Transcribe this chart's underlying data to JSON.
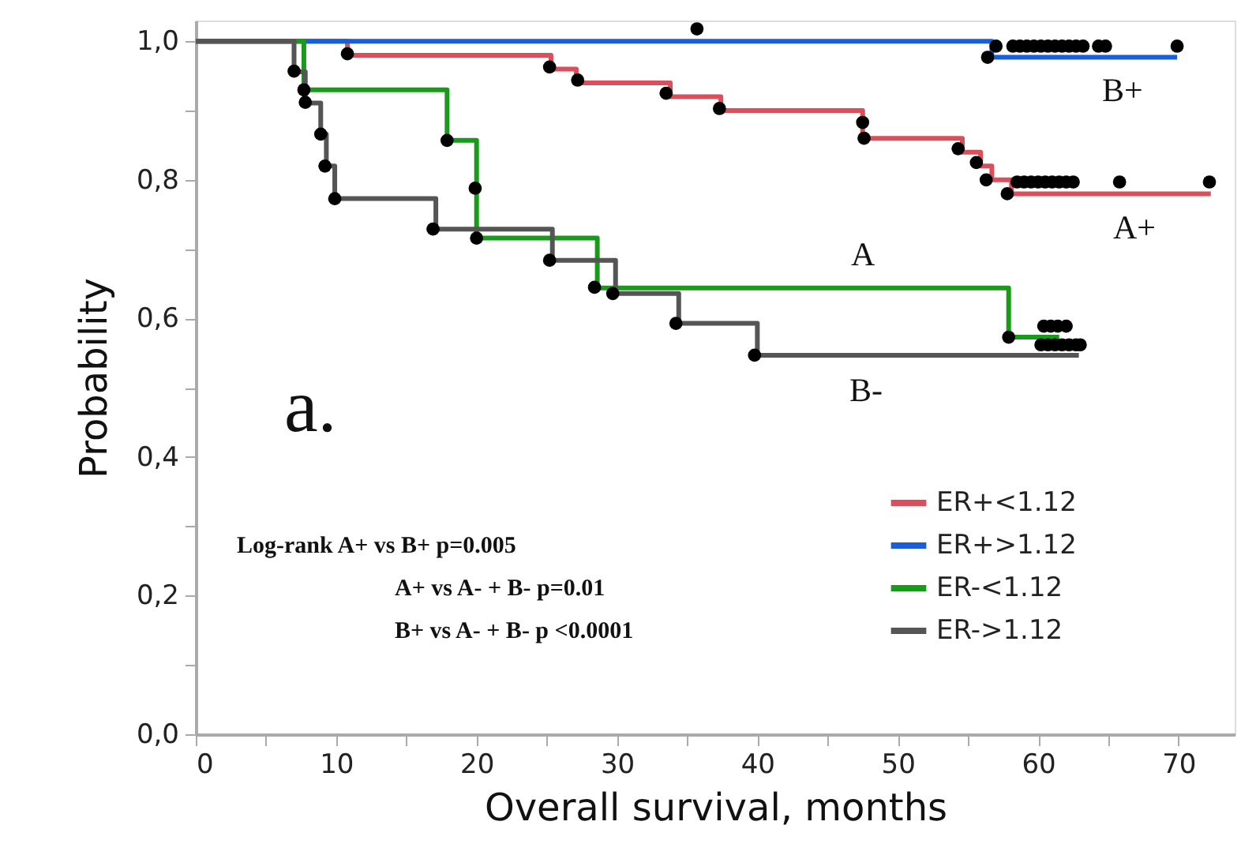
{
  "chart_data": {
    "type": "step",
    "xlabel": "Overall survival, months",
    "ylabel": "Probability",
    "xlim": [
      0,
      74
    ],
    "ylim": [
      0,
      1.03
    ],
    "xticks": [
      0,
      {
        "value": 5,
        "label": null
      },
      10,
      {
        "value": 15,
        "label": null
      },
      20,
      {
        "value": 25,
        "label": null
      },
      30,
      {
        "value": 35,
        "label": null
      },
      40,
      {
        "value": 45,
        "label": null
      },
      50,
      {
        "value": 55,
        "label": null
      },
      60,
      {
        "value": 65,
        "label": null
      },
      70
    ],
    "yticks": [
      {
        "value": 0,
        "label": "0,0"
      },
      {
        "value": 0.1,
        "label": null
      },
      {
        "value": 0.2,
        "label": "0,2"
      },
      {
        "value": 0.3,
        "label": null
      },
      {
        "value": 0.4,
        "label": "0,4"
      },
      {
        "value": 0.5,
        "label": null
      },
      {
        "value": 0.6,
        "label": "0,6"
      },
      {
        "value": 0.7,
        "label": null
      },
      {
        "value": 0.8,
        "label": "0,8"
      },
      {
        "value": 0.9,
        "label": null
      },
      {
        "value": 1.0,
        "label": "1,0"
      }
    ],
    "grid": false,
    "legend": "bottom right",
    "line_style": "solid",
    "series": [
      {
        "name": "ER+<1.12",
        "color": "#d94f5c",
        "x": [
          0,
          10.8,
          25.3,
          27.1,
          33.8,
          37.4,
          47.5,
          54.6,
          55.9,
          56.7,
          58.1,
          72.3
        ],
        "values": [
          1.0,
          0.98,
          0.96,
          0.94,
          0.92,
          0.9,
          0.86,
          0.84,
          0.82,
          0.8,
          0.78,
          0.78
        ]
      },
      {
        "name": "ER+>1.12",
        "color": "#1a5fd6",
        "x": [
          0,
          56.7,
          69.9
        ],
        "values": [
          1.0,
          0.977,
          0.977
        ]
      },
      {
        "name": "ER-<1.12",
        "color": "#1a9a1a",
        "x": [
          0,
          7.7,
          17.9,
          20.0,
          28.6,
          57.9,
          61.5
        ],
        "values": [
          1.0,
          0.93,
          0.857,
          0.716,
          0.644,
          0.573,
          0.573
        ]
      },
      {
        "name": "ER->1.12",
        "color": "#555555",
        "x": [
          0,
          7.0,
          7.8,
          8.9,
          9.3,
          9.9,
          17.1,
          25.4,
          29.9,
          34.4,
          40.0,
          62.9
        ],
        "values": [
          1.0,
          0.956,
          0.911,
          0.866,
          0.82,
          0.773,
          0.729,
          0.684,
          0.636,
          0.593,
          0.547,
          0.547
        ]
      },
      {
        "type": "scatter",
        "marker": "circle",
        "color": "#000000",
        "x": [
          10.8,
          25.2,
          27.2,
          33.5,
          37.3,
          47.5,
          47.6,
          54.3,
          55.6,
          56.3,
          57.8,
          58.5,
          59.0,
          59.5,
          60.0,
          60.5,
          61.0,
          61.5,
          62.0,
          62.5,
          65.8,
          72.2,
          35.7,
          56.4,
          57.0,
          58.2,
          58.7,
          59.2,
          59.7,
          60.2,
          60.7,
          61.2,
          61.7,
          62.2,
          62.7,
          63.2,
          64.3,
          64.8,
          69.9,
          7.7,
          17.9,
          19.9,
          20.0,
          28.4,
          57.9,
          60.4,
          60.9,
          61.4,
          62.0,
          7.0,
          7.8,
          8.9,
          9.2,
          9.9,
          16.9,
          25.2,
          29.7,
          34.2,
          39.8,
          60.2,
          60.7,
          61.2,
          61.7,
          62.2,
          62.7,
          63.0
        ],
        "values": [
          0.982,
          0.963,
          0.944,
          0.925,
          0.903,
          0.883,
          0.86,
          0.845,
          0.825,
          0.8,
          0.78,
          0.797,
          0.797,
          0.797,
          0.797,
          0.797,
          0.797,
          0.797,
          0.797,
          0.797,
          0.797,
          0.797,
          1.018,
          0.977,
          0.993,
          0.993,
          0.993,
          0.993,
          0.993,
          0.993,
          0.993,
          0.993,
          0.993,
          0.993,
          0.993,
          0.993,
          0.993,
          0.993,
          0.993,
          0.93,
          0.857,
          0.788,
          0.716,
          0.645,
          0.573,
          0.589,
          0.589,
          0.589,
          0.589,
          0.957,
          0.912,
          0.866,
          0.82,
          0.773,
          0.729,
          0.684,
          0.636,
          0.593,
          0.547,
          0.562,
          0.562,
          0.562,
          0.562,
          0.562,
          0.562,
          0.562
        ]
      }
    ],
    "annotations": [
      "B+",
      "A+",
      "A",
      "B-",
      "a.",
      "Log-rank A+ vs B+ p=0.005",
      "A+ vs A- + B- p=0.01",
      "B+ vs A- + B- p <0.0001"
    ]
  }
}
